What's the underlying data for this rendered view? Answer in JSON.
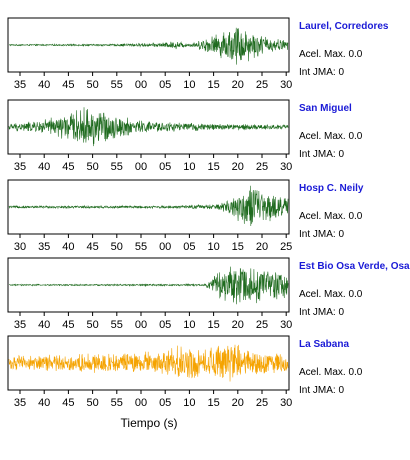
{
  "chart_data": {
    "type": "line",
    "xlabel": "Tiempo (s)",
    "colors": {
      "normal": "#1f6b1f",
      "highlight": "#f5a300"
    },
    "panels": [
      {
        "station": "Laurel, Corredores",
        "acel_label": "Acel. Max.",
        "acel_value": "0.0",
        "jma_label": "Int JMA:",
        "jma_value": "0",
        "ticks": [
          "35",
          "40",
          "45",
          "50",
          "55",
          "00",
          "05",
          "10",
          "15",
          "20",
          "25",
          "30"
        ],
        "highlight": false,
        "envelope": [
          [
            0,
            0.03
          ],
          [
            0.36,
            0.04
          ],
          [
            0.55,
            0.1
          ],
          [
            0.6,
            0.18
          ],
          [
            0.64,
            0.08
          ],
          [
            0.67,
            0.12
          ],
          [
            0.7,
            0.3
          ],
          [
            0.76,
            0.55
          ],
          [
            0.82,
            0.95
          ],
          [
            0.86,
            0.7
          ],
          [
            0.9,
            0.45
          ],
          [
            0.95,
            0.3
          ],
          [
            1,
            0.2
          ]
        ]
      },
      {
        "station": "San Miguel",
        "acel_label": "Acel. Max.",
        "acel_value": "0.0",
        "jma_label": "Int JMA:",
        "jma_value": "0",
        "ticks": [
          "35",
          "40",
          "45",
          "50",
          "55",
          "00",
          "05",
          "10",
          "15",
          "20",
          "25",
          "30"
        ],
        "highlight": false,
        "envelope": [
          [
            0,
            0.15
          ],
          [
            0.1,
            0.25
          ],
          [
            0.2,
            0.55
          ],
          [
            0.3,
            0.95
          ],
          [
            0.34,
            0.7
          ],
          [
            0.4,
            0.45
          ],
          [
            0.5,
            0.25
          ],
          [
            0.7,
            0.15
          ],
          [
            1,
            0.1
          ]
        ]
      },
      {
        "station": "Hosp C. Neily",
        "acel_label": "Acel. Max.",
        "acel_value": "0.0",
        "jma_label": "Int JMA:",
        "jma_value": "0",
        "ticks": [
          "30",
          "35",
          "40",
          "45",
          "50",
          "55",
          "00",
          "05",
          "10",
          "15",
          "20",
          "25"
        ],
        "highlight": false,
        "envelope": [
          [
            0,
            0.05
          ],
          [
            0.6,
            0.06
          ],
          [
            0.75,
            0.12
          ],
          [
            0.8,
            0.45
          ],
          [
            0.87,
            1.0
          ],
          [
            0.92,
            0.65
          ],
          [
            1,
            0.4
          ]
        ]
      },
      {
        "station": "Est Bio Osa Verde, Osa",
        "acel_label": "Acel. Max.",
        "acel_value": "0.0",
        "jma_label": "Int JMA:",
        "jma_value": "0",
        "ticks": [
          "35",
          "40",
          "45",
          "50",
          "55",
          "00",
          "05",
          "10",
          "15",
          "20",
          "25",
          "30"
        ],
        "highlight": false,
        "envelope": [
          [
            0,
            0.03
          ],
          [
            0.7,
            0.04
          ],
          [
            0.72,
            0.3
          ],
          [
            0.78,
            0.75
          ],
          [
            0.82,
            1.0
          ],
          [
            0.88,
            0.8
          ],
          [
            0.94,
            0.7
          ],
          [
            1,
            0.6
          ]
        ]
      },
      {
        "station": "La Sabana",
        "acel_label": "Acel. Max.",
        "acel_value": "0.0",
        "jma_label": "Int JMA:",
        "jma_value": "0",
        "ticks": [
          "35",
          "40",
          "45",
          "50",
          "55",
          "00",
          "05",
          "10",
          "15",
          "20",
          "25",
          "30"
        ],
        "highlight": true,
        "envelope": [
          [
            0,
            0.3
          ],
          [
            0.25,
            0.4
          ],
          [
            0.55,
            0.5
          ],
          [
            0.6,
            0.8
          ],
          [
            0.7,
            0.6
          ],
          [
            0.75,
            0.8
          ],
          [
            0.8,
            0.9
          ],
          [
            0.85,
            0.55
          ],
          [
            1,
            0.4
          ]
        ]
      }
    ]
  }
}
